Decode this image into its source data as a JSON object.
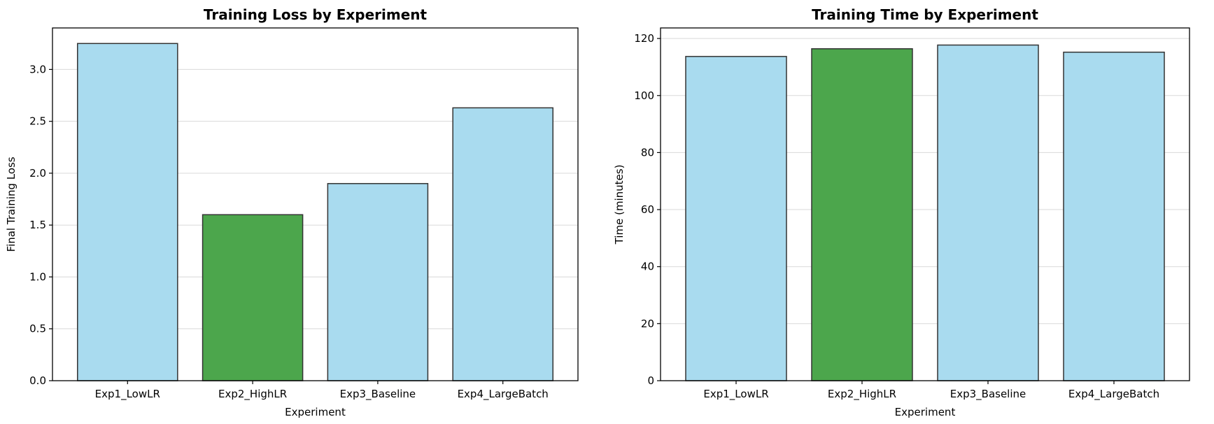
{
  "chart_data": [
    {
      "type": "bar",
      "title": "Training Loss by Experiment",
      "xlabel": "Experiment",
      "ylabel": "Final Training Loss",
      "categories": [
        "Exp1_LowLR",
        "Exp2_HighLR",
        "Exp3_Baseline",
        "Exp4_LargeBatch"
      ],
      "values": [
        3.25,
        1.6,
        1.9,
        2.63
      ],
      "highlight_index": 1,
      "colors": {
        "default": "#a9dbef",
        "highlight": "#4ca64c",
        "edge": "#333333"
      },
      "ylim": [
        0,
        3.4
      ],
      "yticks": [
        0.0,
        0.5,
        1.0,
        1.5,
        2.0,
        2.5,
        3.0
      ],
      "ytick_decimals": 1,
      "grid": "horizontal"
    },
    {
      "type": "bar",
      "title": "Training Time by Experiment",
      "xlabel": "Experiment",
      "ylabel": "Time (minutes)",
      "categories": [
        "Exp1_LowLR",
        "Exp2_HighLR",
        "Exp3_Baseline",
        "Exp4_LargeBatch"
      ],
      "values": [
        113.7,
        116.4,
        117.7,
        115.2
      ],
      "highlight_index": 1,
      "colors": {
        "default": "#a9dbef",
        "highlight": "#4ca64c",
        "edge": "#333333"
      },
      "ylim": [
        0,
        123.7
      ],
      "yticks": [
        0,
        20,
        40,
        60,
        80,
        100,
        120
      ],
      "ytick_decimals": 0,
      "grid": "horizontal"
    }
  ]
}
